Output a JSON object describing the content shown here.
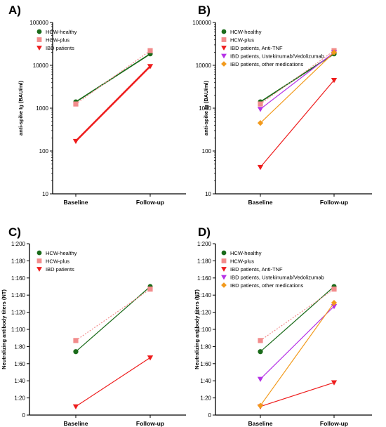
{
  "chart_data": [
    {
      "type": "line",
      "panel": "A)",
      "ylabel": "anti-spike Ig (BAU/ml)",
      "yscale": "log",
      "ylim": [
        10,
        100000
      ],
      "yticks": [
        10,
        100,
        1000,
        10000,
        100000
      ],
      "ytick_labels": [
        "10",
        "100",
        "1000",
        "10000",
        "100000"
      ],
      "categories": [
        "Baseline",
        "Follow-up"
      ],
      "legend_position": "top-left",
      "series": [
        {
          "name": "HCW-healthy",
          "marker": "circle",
          "color": "#1a6b1a",
          "dashed": false,
          "values": [
            1400,
            18500
          ]
        },
        {
          "name": "HCW-plus",
          "marker": "square",
          "color": "#f28c8c",
          "dashed": true,
          "values": [
            1250,
            22000
          ]
        },
        {
          "name": "IBD patients",
          "marker": "triangle-down",
          "color": "#ee1c1c",
          "dashed": false,
          "values": [
            170,
            9500
          ]
        }
      ]
    },
    {
      "type": "line",
      "panel": "B)",
      "ylabel": "anti-spike Ig (BAU/ml)",
      "yscale": "log",
      "ylim": [
        10,
        100000
      ],
      "yticks": [
        10,
        100,
        1000,
        10000,
        100000
      ],
      "ytick_labels": [
        "10",
        "100",
        "1000",
        "10000",
        "100000"
      ],
      "categories": [
        "Baseline",
        "Follow-up"
      ],
      "legend_position": "top-left",
      "series": [
        {
          "name": "HCW-healthy",
          "marker": "circle",
          "color": "#1a6b1a",
          "dashed": false,
          "values": [
            1400,
            18500
          ]
        },
        {
          "name": "HCW-plus",
          "marker": "square",
          "color": "#f28c8c",
          "dashed": true,
          "values": [
            1250,
            22000
          ]
        },
        {
          "name": "IBD patients, Anti-TNF",
          "marker": "triangle-down",
          "color": "#ee1c1c",
          "dashed": false,
          "values": [
            42,
            4500
          ]
        },
        {
          "name": "IBD patients, Ustekinumab/Vedolizumab",
          "marker": "triangle-down",
          "color": "#b531e6",
          "dashed": false,
          "values": [
            950,
            20000
          ]
        },
        {
          "name": "IBD patients, other medications",
          "marker": "diamond",
          "color": "#f29a1c",
          "dashed": false,
          "values": [
            450,
            20000
          ]
        }
      ]
    },
    {
      "type": "line",
      "panel": "C)",
      "ylabel": "Neutralizing antibody titers (NT)",
      "yscale": "linear",
      "ylim": [
        0,
        200
      ],
      "yticks": [
        0,
        20,
        40,
        60,
        80,
        100,
        120,
        140,
        160,
        180,
        200
      ],
      "ytick_labels": [
        "0",
        "1:20",
        "1:40",
        "1:60",
        "1:80",
        "1:100",
        "1:120",
        "1:140",
        "1:160",
        "1:180",
        "1:200"
      ],
      "categories": [
        "Baseline",
        "Follow-up"
      ],
      "legend_position": "top-left",
      "series": [
        {
          "name": "HCW-healthy",
          "marker": "circle",
          "color": "#1a6b1a",
          "dashed": false,
          "values": [
            74,
            150
          ]
        },
        {
          "name": "HCW-plus",
          "marker": "square",
          "color": "#f28c8c",
          "dashed": true,
          "values": [
            87,
            147
          ]
        },
        {
          "name": "IBD patients",
          "marker": "triangle-down",
          "color": "#ee1c1c",
          "dashed": false,
          "values": [
            10,
            67
          ]
        }
      ]
    },
    {
      "type": "line",
      "panel": "D)",
      "ylabel": "Neutralizing antibody titers (NT)",
      "yscale": "linear",
      "ylim": [
        0,
        200
      ],
      "yticks": [
        0,
        20,
        40,
        60,
        80,
        100,
        120,
        140,
        160,
        180,
        200
      ],
      "ytick_labels": [
        "0",
        "1:20",
        "1:40",
        "1:60",
        "1:80",
        "1:100",
        "1:120",
        "1:140",
        "1:160",
        "1:180",
        "1:200"
      ],
      "categories": [
        "Baseline",
        "Follow-up"
      ],
      "legend_position": "top-left",
      "series": [
        {
          "name": "HCW-healthy",
          "marker": "circle",
          "color": "#1a6b1a",
          "dashed": false,
          "values": [
            74,
            150
          ]
        },
        {
          "name": "HCW-plus",
          "marker": "square",
          "color": "#f28c8c",
          "dashed": true,
          "values": [
            87,
            147
          ]
        },
        {
          "name": "IBD patients, Anti-TNF",
          "marker": "triangle-down",
          "color": "#ee1c1c",
          "dashed": false,
          "values": [
            10,
            38
          ]
        },
        {
          "name": "IBD patients, Ustekinumab/Vedolizumab",
          "marker": "triangle-down",
          "color": "#b531e6",
          "dashed": false,
          "values": [
            42,
            127
          ]
        },
        {
          "name": "IBD patients, other medications",
          "marker": "diamond",
          "color": "#f29a1c",
          "dashed": false,
          "values": [
            11,
            131
          ]
        }
      ]
    }
  ]
}
